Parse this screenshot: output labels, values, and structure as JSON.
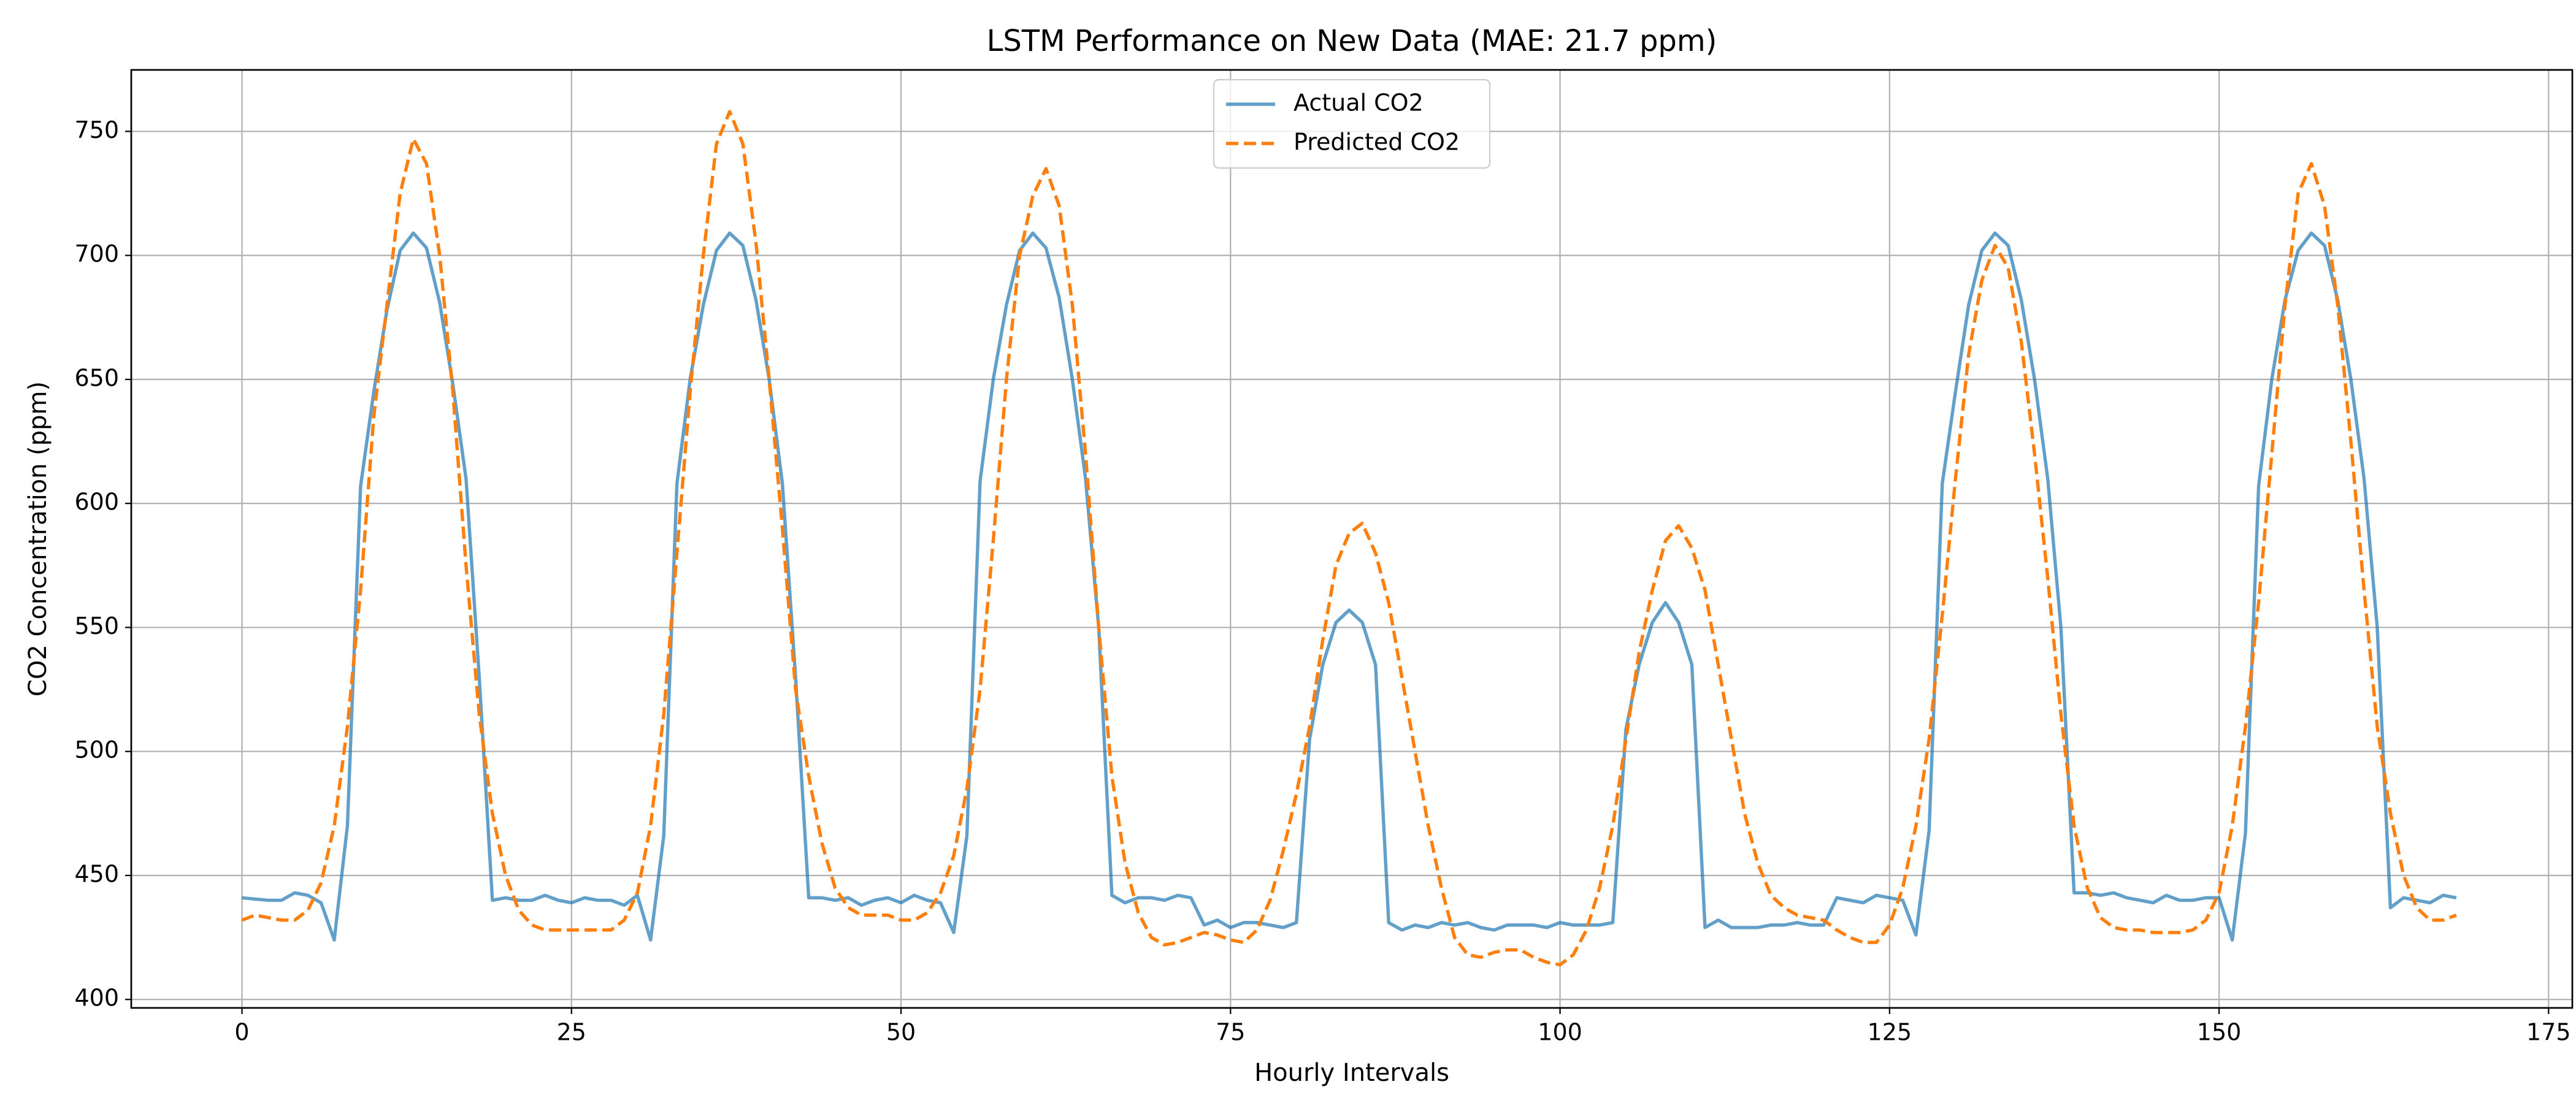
{
  "chart_data": {
    "type": "line",
    "title": "LSTM Performance on New Data (MAE: 21.7 ppm)",
    "xlabel": "Hourly Intervals",
    "ylabel": "CO2 Concentration (ppm)",
    "x": [
      0,
      1,
      2,
      3,
      4,
      5,
      6,
      7,
      8,
      9,
      10,
      11,
      12,
      13,
      14,
      15,
      16,
      17,
      18,
      19,
      20,
      21,
      22,
      23,
      24,
      25,
      26,
      27,
      28,
      29,
      30,
      31,
      32,
      33,
      34,
      35,
      36,
      37,
      38,
      39,
      40,
      41,
      42,
      43,
      44,
      45,
      46,
      47,
      48,
      49,
      50,
      51,
      52,
      53,
      54,
      55,
      56,
      57,
      58,
      59,
      60,
      61,
      62,
      63,
      64,
      65,
      66,
      67,
      68,
      69,
      70,
      71,
      72,
      73,
      74,
      75,
      76,
      77,
      78,
      79,
      80,
      81,
      82,
      83,
      84,
      85,
      86,
      87,
      88,
      89,
      90,
      91,
      92,
      93,
      94,
      95,
      96,
      97,
      98,
      99,
      100,
      101,
      102,
      103,
      104,
      105,
      106,
      107,
      108,
      109,
      110,
      111,
      112,
      113,
      114,
      115,
      116,
      117,
      118,
      119,
      120,
      121,
      122,
      123,
      124,
      125,
      126,
      127,
      128,
      129,
      130,
      131,
      132,
      133,
      134,
      135,
      136,
      137,
      138,
      139,
      140,
      141,
      142,
      143,
      144,
      145,
      146,
      147,
      148,
      149,
      150,
      151,
      152,
      153,
      154,
      155,
      156,
      157,
      158,
      159,
      160,
      161,
      162,
      163,
      164,
      165,
      166,
      167,
      168
    ],
    "series": [
      {
        "name": "Actual CO2",
        "color": "#1f77b4",
        "opacity": 0.7,
        "dashed": false,
        "values": [
          441,
          440.5,
          440,
          440,
          443,
          442,
          439,
          424,
          470,
          607,
          645,
          678,
          702,
          709,
          703,
          681,
          648,
          610,
          530,
          440,
          441,
          440,
          440,
          442,
          440,
          439,
          441,
          440,
          440,
          438,
          442,
          424,
          466,
          608,
          650,
          680,
          702,
          709,
          704,
          682,
          650,
          608,
          530,
          441,
          441,
          440,
          441,
          438,
          440,
          441,
          439,
          442,
          440,
          439,
          427,
          466,
          609,
          650,
          680,
          702,
          709,
          703,
          683,
          650,
          610,
          550,
          442,
          439,
          441,
          441,
          440,
          442,
          441,
          430,
          432,
          429,
          431,
          431,
          430,
          429,
          431,
          505,
          535,
          552,
          557,
          552,
          535,
          431,
          428,
          430,
          429,
          431,
          430,
          431,
          429,
          428,
          430,
          430,
          430,
          429,
          431,
          430,
          430,
          430,
          431,
          509,
          535,
          552,
          560,
          552,
          535,
          429,
          432,
          429,
          429,
          429,
          430,
          430,
          431,
          430,
          430,
          441,
          440,
          439,
          442,
          441,
          440,
          426,
          468,
          608,
          645,
          680,
          702,
          709,
          704,
          682,
          650,
          610,
          550,
          443,
          443,
          442,
          443,
          441,
          440,
          439,
          442,
          440,
          440,
          441,
          441,
          424,
          467,
          607,
          650,
          682,
          702,
          709,
          704,
          682,
          650,
          610,
          550,
          437,
          441,
          440,
          439,
          442,
          441
        ]
      },
      {
        "name": "Predicted CO2",
        "color": "#ff7f0e",
        "opacity": 1,
        "dashed": true,
        "values": [
          432,
          434,
          433,
          432,
          432,
          436,
          447,
          470,
          510,
          565,
          635,
          680,
          725,
          747,
          737,
          700,
          645,
          575,
          515,
          475,
          450,
          436,
          430,
          428,
          428,
          428,
          428,
          428,
          428,
          432,
          443,
          470,
          515,
          580,
          645,
          700,
          745,
          758,
          745,
          705,
          650,
          590,
          525,
          490,
          463,
          445,
          437,
          434,
          434,
          434,
          432,
          432,
          435,
          443,
          458,
          485,
          525,
          585,
          650,
          700,
          724,
          735,
          720,
          680,
          620,
          550,
          490,
          455,
          435,
          425,
          422,
          423,
          425,
          427,
          426,
          424,
          423,
          428,
          440,
          460,
          483,
          510,
          545,
          575,
          588,
          592,
          580,
          560,
          530,
          500,
          470,
          445,
          425,
          418,
          417,
          419,
          420,
          420,
          417,
          415,
          414,
          418,
          428,
          445,
          470,
          505,
          540,
          565,
          585,
          591,
          582,
          565,
          535,
          505,
          475,
          455,
          442,
          437,
          434,
          433,
          432,
          428,
          425,
          423,
          423,
          430,
          445,
          470,
          505,
          555,
          610,
          660,
          690,
          704,
          695,
          665,
          620,
          570,
          515,
          470,
          445,
          433,
          429,
          428,
          428,
          427,
          427,
          427,
          428,
          432,
          443,
          470,
          510,
          560,
          620,
          680,
          725,
          737,
          720,
          680,
          625,
          565,
          510,
          475,
          450,
          437,
          432,
          432,
          434
        ]
      }
    ],
    "xlim": [
      -8.4,
      176.8
    ],
    "ylim": [
      396.6,
      774.8
    ],
    "xticks": [
      0,
      25,
      50,
      75,
      100,
      125,
      150,
      175
    ],
    "yticks": [
      400,
      450,
      500,
      550,
      600,
      650,
      700,
      750
    ],
    "grid": true,
    "legend": "upper center"
  }
}
